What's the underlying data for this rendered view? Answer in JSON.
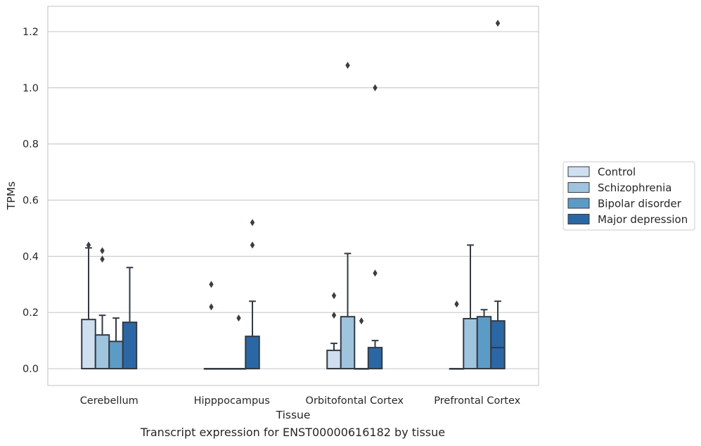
{
  "caption": "Transcript expression for ENST00000616182 by tissue",
  "chart_data": {
    "type": "box",
    "xlabel": "Tissue",
    "ylabel": "TPMs",
    "ylim": [
      -0.06,
      1.29
    ],
    "yticks": [
      0.0,
      0.2,
      0.4,
      0.6,
      0.8,
      1.0,
      1.2
    ],
    "ytick_labels": [
      "0.0",
      "0.2",
      "0.4",
      "0.6",
      "0.8",
      "1.0",
      "1.2"
    ],
    "grid": "horizontal",
    "legend_position": "right",
    "categories": [
      "Cerebellum",
      "Hipppocampus",
      "Orbitofontal Cortex",
      "Prefrontal Cortex"
    ],
    "series": [
      {
        "name": "Control",
        "color": "#cfdfef",
        "boxes": [
          {
            "q1": 0.0,
            "median": 0.0,
            "q3": 0.175,
            "whisker_low": 0.0,
            "whisker_high": 0.43,
            "outliers": [
              0.44
            ]
          },
          {
            "q1": 0.0,
            "median": 0.0,
            "q3": 0.0,
            "whisker_low": 0.0,
            "whisker_high": 0.0,
            "outliers": [
              0.22,
              0.3
            ]
          },
          {
            "q1": 0.0,
            "median": 0.0,
            "q3": 0.065,
            "whisker_low": 0.0,
            "whisker_high": 0.09,
            "outliers": [
              0.19,
              0.26
            ]
          },
          {
            "q1": 0.0,
            "median": 0.0,
            "q3": 0.0,
            "whisker_low": 0.0,
            "whisker_high": 0.0,
            "outliers": [
              0.23
            ]
          }
        ]
      },
      {
        "name": "Schizophrenia",
        "color": "#9fc4dd",
        "boxes": [
          {
            "q1": 0.0,
            "median": 0.0,
            "q3": 0.12,
            "whisker_low": 0.0,
            "whisker_high": 0.19,
            "outliers": [
              0.39,
              0.42
            ]
          },
          {
            "q1": 0.0,
            "median": 0.0,
            "q3": 0.0,
            "whisker_low": 0.0,
            "whisker_high": 0.0,
            "outliers": []
          },
          {
            "q1": 0.0,
            "median": 0.0,
            "q3": 0.185,
            "whisker_low": 0.0,
            "whisker_high": 0.41,
            "outliers": [
              1.08
            ]
          },
          {
            "q1": 0.0,
            "median": 0.0,
            "q3": 0.178,
            "whisker_low": 0.0,
            "whisker_high": 0.44,
            "outliers": []
          }
        ]
      },
      {
        "name": "Bipolar disorder",
        "color": "#5d9bc7",
        "boxes": [
          {
            "q1": 0.0,
            "median": 0.0,
            "q3": 0.097,
            "whisker_low": 0.0,
            "whisker_high": 0.18,
            "outliers": []
          },
          {
            "q1": 0.0,
            "median": 0.0,
            "q3": 0.0,
            "whisker_low": 0.0,
            "whisker_high": 0.0,
            "outliers": [
              0.18
            ]
          },
          {
            "q1": 0.0,
            "median": 0.0,
            "q3": 0.0,
            "whisker_low": 0.0,
            "whisker_high": 0.0,
            "outliers": [
              0.17
            ]
          },
          {
            "q1": 0.0,
            "median": 0.0,
            "q3": 0.185,
            "whisker_low": 0.0,
            "whisker_high": 0.21,
            "outliers": []
          }
        ]
      },
      {
        "name": "Major depression",
        "color": "#2b67a4",
        "boxes": [
          {
            "q1": 0.0,
            "median": 0.0,
            "q3": 0.165,
            "whisker_low": 0.0,
            "whisker_high": 0.36,
            "outliers": []
          },
          {
            "q1": 0.0,
            "median": 0.0,
            "q3": 0.115,
            "whisker_low": 0.0,
            "whisker_high": 0.24,
            "outliers": [
              0.44,
              0.52
            ]
          },
          {
            "q1": 0.0,
            "median": 0.0,
            "q3": 0.075,
            "whisker_low": 0.0,
            "whisker_high": 0.1,
            "outliers": [
              0.34,
              1.0
            ]
          },
          {
            "q1": 0.0,
            "median": 0.075,
            "q3": 0.17,
            "whisker_low": 0.0,
            "whisker_high": 0.24,
            "outliers": [
              1.23
            ]
          }
        ]
      }
    ]
  }
}
